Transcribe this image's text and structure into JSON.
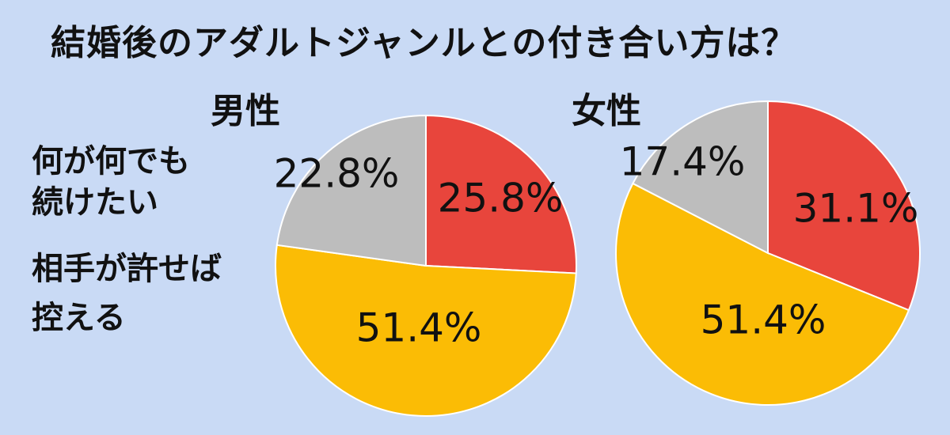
{
  "title": "結婚後のアダルトジャンルとの付き合い方は？",
  "legend": [
    {
      "label_line1": "何が何でも",
      "label_line2": "続けたい",
      "color": "#e8453c"
    },
    {
      "label_line1": "相手が許せば",
      "label_line2": "",
      "color": "#fbbc05"
    },
    {
      "label_line1": "控える",
      "label_line2": "",
      "color": "#bdbdbd"
    }
  ],
  "chart_data": [
    {
      "type": "pie",
      "title": "男性",
      "categories": [
        "何が何でも続けたい",
        "相手が許せば",
        "控える"
      ],
      "values": [
        25.8,
        51.4,
        22.8
      ],
      "labels": [
        "25.8%",
        "51.4%",
        "22.8%"
      ],
      "colors": [
        "#e8453c",
        "#fbbc05",
        "#bdbdbd"
      ],
      "legend_position": "left"
    },
    {
      "type": "pie",
      "title": "女性",
      "categories": [
        "何が何でも続けたい",
        "相手が許せば",
        "控える"
      ],
      "values": [
        31.1,
        51.4,
        17.4
      ],
      "labels": [
        "31.1%",
        "51.4%",
        "17.4%"
      ],
      "colors": [
        "#e8453c",
        "#fbbc05",
        "#bdbdbd"
      ],
      "legend_position": "left"
    }
  ]
}
